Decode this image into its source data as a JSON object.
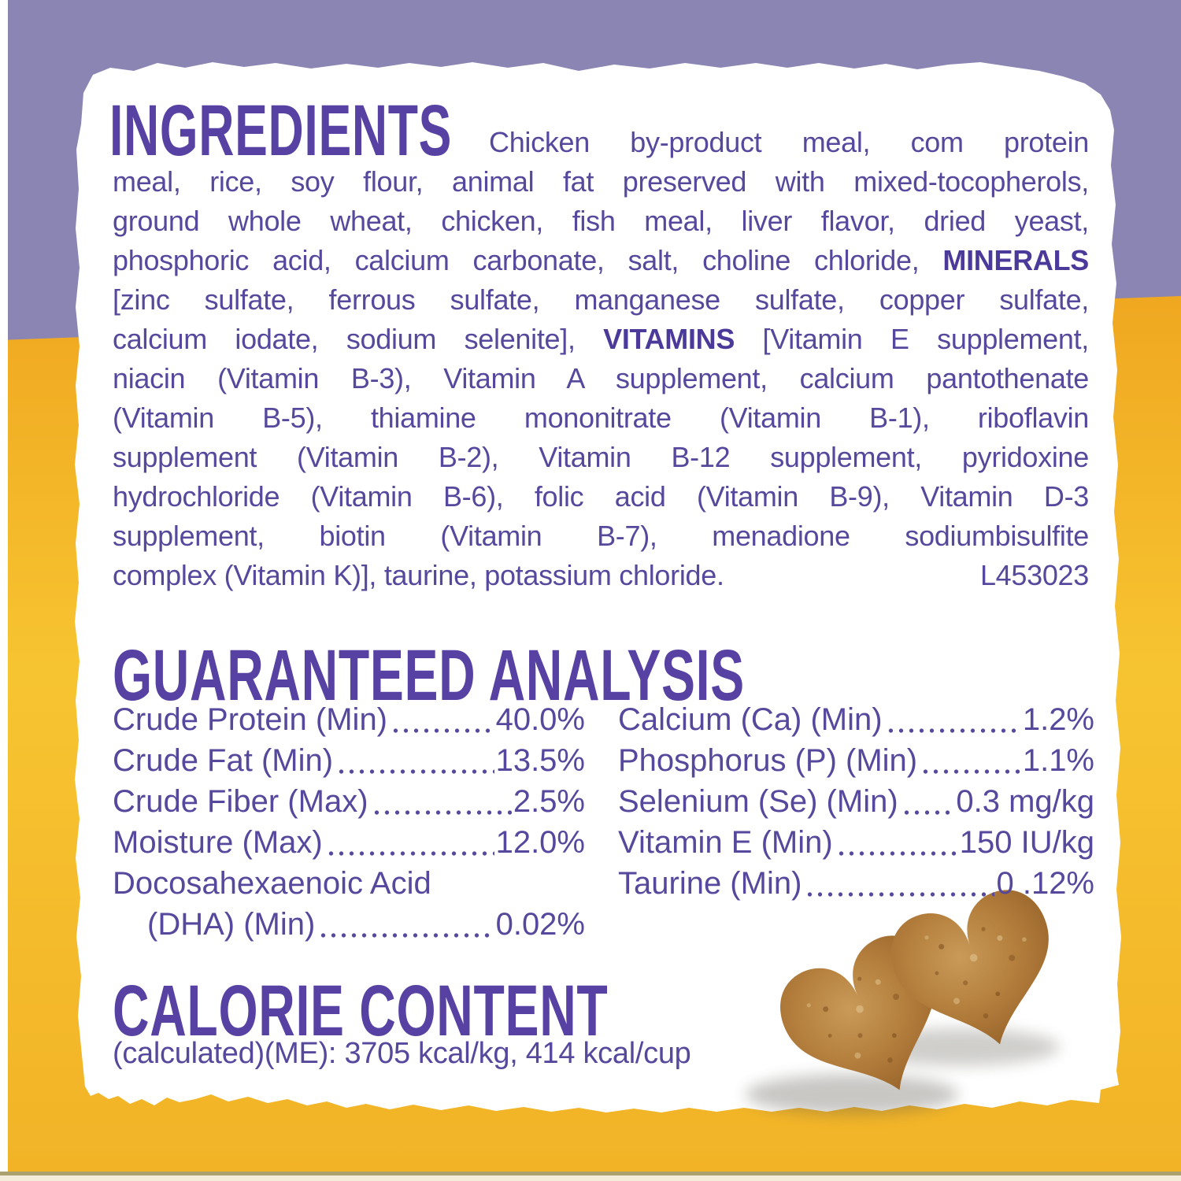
{
  "label": {
    "type": "pet-food-back-label"
  },
  "colors": {
    "background_purple": "#8b85b3",
    "background_yellow": "#f4b82b",
    "panel_white": "#ffffff",
    "body_text_purple": "#56489c",
    "heading_purple": "#5742a3",
    "bold_text_purple": "#4c3a9a",
    "kibble_brown": "#b07a38",
    "bottom_line_tan": "#aba06f",
    "bottom_strip_cream": "#f3edda"
  },
  "ingredients": {
    "heading": "INGREDIENTS",
    "lines": [
      [
        [
          "Chicken by-product meal, com protein",
          false
        ]
      ],
      [
        [
          "meal, rice, soy flour, animal fat preserved with mixed-tocopherols,",
          false
        ]
      ],
      [
        [
          "ground whole wheat, chicken, fish meal, liver flavor, dried yeast,",
          false
        ]
      ],
      [
        [
          "phosphoric acid, calcium carbonate, salt, choline chloride, ",
          false
        ],
        [
          "MINERALS",
          true
        ]
      ],
      [
        [
          "[zinc sulfate, ferrous sulfate, manganese sulfate, copper sulfate,",
          false
        ]
      ],
      [
        [
          "calcium iodate, sodium selenite], ",
          false
        ],
        [
          "VITAMINS",
          true
        ],
        [
          " [Vitamin E supplement,",
          false
        ]
      ],
      [
        [
          "niacin (Vitamin B-3), Vitamin A supplement, calcium pantothenate",
          false
        ]
      ],
      [
        [
          "(Vitamin B-5), thiamine mononitrate (Vitamin B-1), riboflavin",
          false
        ]
      ],
      [
        [
          "supplement (Vitamin B-2), Vitamin B-12 supplement, pyridoxine",
          false
        ]
      ],
      [
        [
          "hydrochloride (Vitamin B-6), folic acid (Vitamin B-9), Vitamin D-3",
          false
        ]
      ],
      [
        [
          "supplement, biotin (Vitamin B-7), menadione sodiumbisulfite",
          false
        ]
      ]
    ],
    "last_line_text": "complex (Vitamin K)], taurine, potassium chloride.",
    "lot_code": "L453023"
  },
  "guaranteed_analysis": {
    "heading": "GUARANTEED ANALYSIS",
    "left": [
      {
        "label": "Crude Protein (Min)",
        "value": "40.0%"
      },
      {
        "label": "Crude Fat (Min)",
        "value": "13.5%"
      },
      {
        "label": "Crude Fiber (Max)",
        "value": "2.5%"
      },
      {
        "label": "Moisture (Max)",
        "value": "12.0%"
      },
      {
        "label": "Docosahexaenoic Acid",
        "value": ""
      },
      {
        "label": "(DHA) (Min)",
        "value": "0.02%",
        "indent": true
      }
    ],
    "right": [
      {
        "label": "Calcium (Ca) (Min)",
        "value": "1.2%"
      },
      {
        "label": "Phosphorus (P) (Min)",
        "value": "1.1%"
      },
      {
        "label": "Selenium (Se) (Min)",
        "value": "0.3 mg/kg"
      },
      {
        "label": "Vitamin E (Min)",
        "value": "150 IU/kg"
      },
      {
        "label": "Taurine (Min)",
        "value": "0 .12%"
      }
    ]
  },
  "calorie_content": {
    "heading": "CALORIE CONTENT",
    "detail": "(calculated)(ME): 3705 kcal/kg, 414 kcal/cup"
  }
}
